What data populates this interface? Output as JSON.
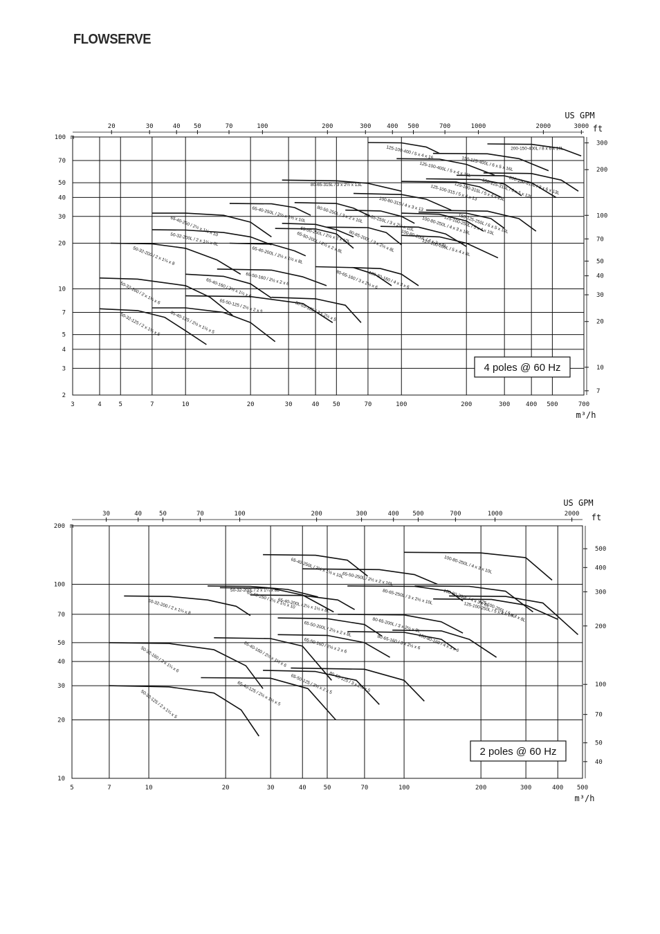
{
  "header": {
    "logo_text": "FLOWSERVE"
  },
  "chart_data": [
    {
      "type": "line",
      "title": "4 poles @ 60 Hz",
      "xlabel": "m³/h",
      "x2label": "US GPM",
      "ylabel": "m",
      "y2label": "ft",
      "scale": "log-log",
      "xlim": [
        3,
        700
      ],
      "ylim": [
        2,
        100
      ],
      "x_ticks": [
        "3",
        "4",
        "5",
        "7",
        "10",
        "20",
        "30",
        "40",
        "50",
        "70",
        "100",
        "200",
        "300",
        "400",
        "500",
        "700"
      ],
      "x2_ticks": [
        "20",
        "30",
        "40",
        "50",
        "70",
        "100",
        "200",
        "300",
        "400",
        "500",
        "700",
        "1000",
        "2000",
        "3000"
      ],
      "y_ticks": [
        "2",
        "3",
        "4",
        "5",
        "7",
        "10",
        "20",
        "30",
        "40",
        "50",
        "70",
        "100"
      ],
      "y2_ticks": [
        "7",
        "10",
        "20",
        "30",
        "40",
        "50",
        "70",
        "100",
        "200",
        "300"
      ],
      "grid": true,
      "series": [
        {
          "name": "50-32-125 / 2 x 1¼ x 5",
          "x": [
            4,
            6,
            8,
            10,
            12.5
          ],
          "y": [
            7.4,
            7.2,
            6.5,
            5.3,
            4.3
          ]
        },
        {
          "name": "50-32-160 / 2 x 1¼ x 6",
          "x": [
            4,
            6,
            10,
            13,
            16.5
          ],
          "y": [
            11.8,
            11.6,
            10.5,
            8.8,
            6.7
          ]
        },
        {
          "name": "50-32-200 / 2 x 1¼ x 8",
          "x": [
            4.5,
            7,
            10,
            14,
            18
          ],
          "y": [
            20,
            19.8,
            18.5,
            15.5,
            12.5
          ]
        },
        {
          "name": "50-32-200L / 2 x 1¼ x 8L",
          "x": [
            7,
            10,
            15,
            20,
            25
          ],
          "y": [
            24.5,
            24.4,
            23.5,
            22,
            19.5
          ]
        },
        {
          "name": "65-40-125 / 2½ x 1½ x 5",
          "x": [
            7,
            10,
            15,
            20,
            26
          ],
          "y": [
            7.5,
            7.5,
            7,
            6,
            4.5
          ]
        },
        {
          "name": "65-40-160 / 2½ x 1½ x 6",
          "x": [
            10,
            15,
            20,
            25
          ],
          "y": [
            12.5,
            12.1,
            10.8,
            8.7
          ]
        },
        {
          "name": "65-40-200L / 2½ x 1½ x 8L",
          "x": [
            16,
            25,
            32,
            36
          ],
          "y": [
            20,
            19.7,
            17.8,
            16.5
          ]
        },
        {
          "name": "65-40-250 / 2½ x 1½ x 10",
          "x": [
            7,
            10,
            15,
            20,
            25
          ],
          "y": [
            31.5,
            31.5,
            30.5,
            27.5,
            22
          ]
        },
        {
          "name": "65-40-250L / 2½ x 1½ x 10L",
          "x": [
            16,
            25,
            32,
            38
          ],
          "y": [
            36.5,
            36.3,
            34.3,
            30.5
          ]
        },
        {
          "name": "65-50-125 / 2½ x 2 x 5",
          "x": [
            10,
            20,
            35,
            48
          ],
          "y": [
            9,
            8.9,
            8,
            6
          ]
        },
        {
          "name": "65-50-160 / 2½ x 2 x 6",
          "x": [
            14,
            25,
            35,
            45
          ],
          "y": [
            13.5,
            13.3,
            12,
            10.5
          ]
        },
        {
          "name": "65-50-200L / 2½ x 2 x 8L",
          "x": [
            26,
            40,
            50,
            60
          ],
          "y": [
            25,
            24.8,
            23,
            18.5
          ]
        },
        {
          "name": "65-50-250L / 2½ x 2 x 10L",
          "x": [
            28,
            40,
            50,
            60
          ],
          "y": [
            27,
            26.6,
            24.5,
            22
          ]
        },
        {
          "name": "80-50-250L / 3 x 2 x 10L",
          "x": [
            32,
            50,
            60,
            72
          ],
          "y": [
            37,
            36.5,
            34,
            30
          ]
        },
        {
          "name": "80-65-125 / 3 x 2½ x 5",
          "x": [
            25,
            40,
            55,
            65
          ],
          "y": [
            8.8,
            8.6,
            7.8,
            6
          ]
        },
        {
          "name": "80-65-160 / 3 x 2½ x 6",
          "x": [
            40,
            60,
            75,
            90
          ],
          "y": [
            14,
            13.8,
            12.5,
            10.5
          ]
        },
        {
          "name": "80-65-200L / 3 x 2½ x 8L",
          "x": [
            45,
            70,
            85,
            100
          ],
          "y": [
            25.5,
            25.3,
            23.5,
            19.5
          ]
        },
        {
          "name": "80-65-250L / 3 x 2½ x 10L",
          "x": [
            55,
            80,
            100,
            115
          ],
          "y": [
            33,
            32.6,
            30,
            27
          ]
        },
        {
          "name": "80-65-315L / 3 x 2½ x 13L",
          "x": [
            28,
            50,
            70,
            100
          ],
          "y": [
            52,
            51.5,
            49.5,
            44
          ]
        },
        {
          "name": "100-80-160 / 4 x 3 x 6",
          "x": [
            60,
            80,
            100,
            120
          ],
          "y": [
            13.8,
            13.6,
            12.5,
            10.5
          ]
        },
        {
          "name": "100-80-200L / 4 x 3 x 8L",
          "x": [
            80,
            120,
            160,
            200
          ],
          "y": [
            25.8,
            25.5,
            23,
            19
          ]
        },
        {
          "name": "100-80-250L / 4 x 3 x 10L",
          "x": [
            100,
            150,
            200,
            240
          ],
          "y": [
            31.5,
            31,
            28,
            24
          ]
        },
        {
          "name": "100-80-315 / 4 x 3 x 13",
          "x": [
            60,
            100,
            130,
            170
          ],
          "y": [
            42.5,
            41.8,
            39,
            33
          ]
        },
        {
          "name": "125-100-200L / 5 x 4 x 8L",
          "x": [
            100,
            150,
            200,
            280
          ],
          "y": [
            22.5,
            22,
            20,
            16
          ]
        },
        {
          "name": "125-100-250L / 5 x 4 x 10L",
          "x": [
            120,
            200,
            260,
            300
          ],
          "y": [
            32,
            31.5,
            29,
            25
          ]
        },
        {
          "name": "125-100-315 / 5 x 4 x 13",
          "x": [
            100,
            180,
            230,
            290
          ],
          "y": [
            51,
            50.5,
            47,
            40
          ]
        },
        {
          "name": "125-100-315L / 5 x 4 x 13L",
          "x": [
            130,
            230,
            300,
            360
          ],
          "y": [
            53,
            52.5,
            49,
            41
          ]
        },
        {
          "name": "125-100-400 / 5 x 4 x 16",
          "x": [
            70,
            100,
            130,
            150
          ],
          "y": [
            92,
            91.5,
            86,
            78
          ]
        },
        {
          "name": "125-100-400L / 5 x 4 x 16L",
          "x": [
            95,
            150,
            200,
            270
          ],
          "y": [
            72,
            71.5,
            66,
            56
          ]
        },
        {
          "name": "150-125-250L / 6 x 5 x 10L",
          "x": [
            130,
            250,
            350,
            420
          ],
          "y": [
            33,
            32.5,
            29,
            24
          ]
        },
        {
          "name": "150-125-315L / 6 x 5 x 13L",
          "x": [
            180,
            300,
            400,
            520
          ],
          "y": [
            56,
            55.5,
            50,
            40
          ]
        },
        {
          "name": "150-125-400L / 6 x 5 x 16L",
          "x": [
            140,
            250,
            350,
            480
          ],
          "y": [
            78,
            77.5,
            72,
            60
          ]
        },
        {
          "name": "200-150-315L / 8 x 6 x 13L",
          "x": [
            240,
            400,
            550,
            660
          ],
          "y": [
            58,
            57.5,
            52,
            44
          ]
        },
        {
          "name": "200-150-400L / 8 x 6 x 16L",
          "x": [
            250,
            400,
            550,
            680
          ],
          "y": [
            90,
            89.5,
            84,
            75
          ]
        }
      ]
    },
    {
      "type": "line",
      "title": "2 poles @ 60 Hz",
      "xlabel": "m³/h",
      "x2label": "US GPM",
      "ylabel": "m",
      "y2label": "ft",
      "scale": "log-log",
      "xlim": [
        5,
        500
      ],
      "ylim": [
        10,
        200
      ],
      "x_ticks": [
        "5",
        "7",
        "10",
        "20",
        "30",
        "40",
        "50",
        "70",
        "100",
        "200",
        "300",
        "400",
        "500"
      ],
      "x2_ticks": [
        "30",
        "40",
        "50",
        "70",
        "100",
        "200",
        "300",
        "400",
        "500",
        "700",
        "1000",
        "2000"
      ],
      "y_ticks": [
        "10",
        "20",
        "30",
        "40",
        "50",
        "70",
        "100",
        "200"
      ],
      "y2_ticks": [
        "30",
        "40",
        "50",
        "70",
        "100",
        "200",
        "300",
        "400",
        "500"
      ],
      "grid": true,
      "series": [
        {
          "name": "50-32-125 / 2 x 1¼ x 5",
          "x": [
            7,
            12,
            18,
            23,
            27
          ],
          "y": [
            30,
            29.6,
            27.5,
            22.5,
            16.5
          ]
        },
        {
          "name": "50-32-160 / 2 x 1¼ x 6",
          "x": [
            7,
            12,
            18,
            24,
            28
          ],
          "y": [
            50,
            49.5,
            46,
            38,
            29
          ]
        },
        {
          "name": "50-32-200 / 2 x 1¼ x 8",
          "x": [
            8,
            12,
            17,
            22,
            25
          ],
          "y": [
            87,
            86.5,
            83,
            77,
            69
          ]
        },
        {
          "name": "50-32-200L / 2 x 1¼ x 8L",
          "x": [
            17,
            25,
            35,
            46
          ],
          "y": [
            98,
            97.5,
            94,
            86
          ]
        },
        {
          "name": "65-40-125 / 2½ x 1½ x 5",
          "x": [
            16,
            30,
            42,
            54
          ],
          "y": [
            33,
            32.8,
            29,
            20
          ]
        },
        {
          "name": "65-40-160 / 2½ x 1½ x 6",
          "x": [
            18,
            30,
            40,
            52
          ],
          "y": [
            53,
            52.5,
            48,
            32
          ]
        },
        {
          "name": "65-40-200L / 2½ x 1½ x 8L",
          "x": [
            25,
            40,
            55,
            64
          ],
          "y": [
            88,
            87.5,
            83,
            74
          ]
        },
        {
          "name": "65-40-250 / 2½ x 1½ x 10",
          "x": [
            19,
            30,
            40,
            53
          ],
          "y": [
            96,
            95.5,
            88,
            72
          ]
        },
        {
          "name": "65-40-250L / 2½ x 1½ x 10L",
          "x": [
            28,
            45,
            60,
            72
          ],
          "y": [
            142,
            141,
            133,
            110
          ]
        },
        {
          "name": "65-50-125 / 2½ x 2 x 5",
          "x": [
            28,
            45,
            65,
            80
          ],
          "y": [
            36,
            35.5,
            32,
            24
          ]
        },
        {
          "name": "65-50-160 / 2½ x 2 x 6",
          "x": [
            32,
            50,
            70,
            88
          ],
          "y": [
            55,
            54.5,
            50,
            42
          ]
        },
        {
          "name": "65-50-200L / 2½ x 2 x 8L",
          "x": [
            32,
            50,
            70,
            82
          ],
          "y": [
            67,
            66.5,
            62,
            54
          ]
        },
        {
          "name": "65-50-250L / 2½ x 2 x 10L",
          "x": [
            40,
            80,
            110,
            135
          ],
          "y": [
            120,
            119,
            112,
            100
          ]
        },
        {
          "name": "80-65-125 / 3 x 2½ x 5",
          "x": [
            36,
            70,
            100,
            120
          ],
          "y": [
            37,
            36.5,
            32,
            25
          ]
        },
        {
          "name": "80-65-160 / 3 x 2½ x 6",
          "x": [
            60,
            100,
            140,
            160
          ],
          "y": [
            57,
            56.5,
            52,
            46
          ]
        },
        {
          "name": "80-65-200L / 3 x 2½ x 8L",
          "x": [
            55,
            100,
            140,
            170
          ],
          "y": [
            70,
            69.5,
            64,
            56
          ]
        },
        {
          "name": "80-65-250L / 3 x 2½ x 10L",
          "x": [
            60,
            110,
            150,
            170
          ],
          "y": [
            98,
            97.5,
            92,
            82
          ]
        },
        {
          "name": "100-80-160 / 4 x 3 x 6",
          "x": [
            90,
            140,
            180,
            230
          ],
          "y": [
            58,
            57.5,
            52,
            42
          ]
        },
        {
          "name": "100-80-200L / 4 x 3 x 8L",
          "x": [
            110,
            180,
            250,
            320
          ],
          "y": [
            98,
            97.5,
            92,
            72
          ]
        },
        {
          "name": "100-80-250L / 4 x 3 x 10L",
          "x": [
            100,
            200,
            300,
            380
          ],
          "y": [
            146,
            145,
            137,
            105
          ]
        },
        {
          "name": "125-100-250L / 5 x 4 x 10L",
          "x": [
            130,
            220,
            300,
            400
          ],
          "y": [
            84,
            83.5,
            78,
            66
          ]
        },
        {
          "name": "125-100-200L / 5 x 4 x 8L",
          "x": [
            150,
            250,
            350,
            480
          ],
          "y": [
            87,
            86.5,
            80,
            55
          ]
        }
      ]
    }
  ]
}
